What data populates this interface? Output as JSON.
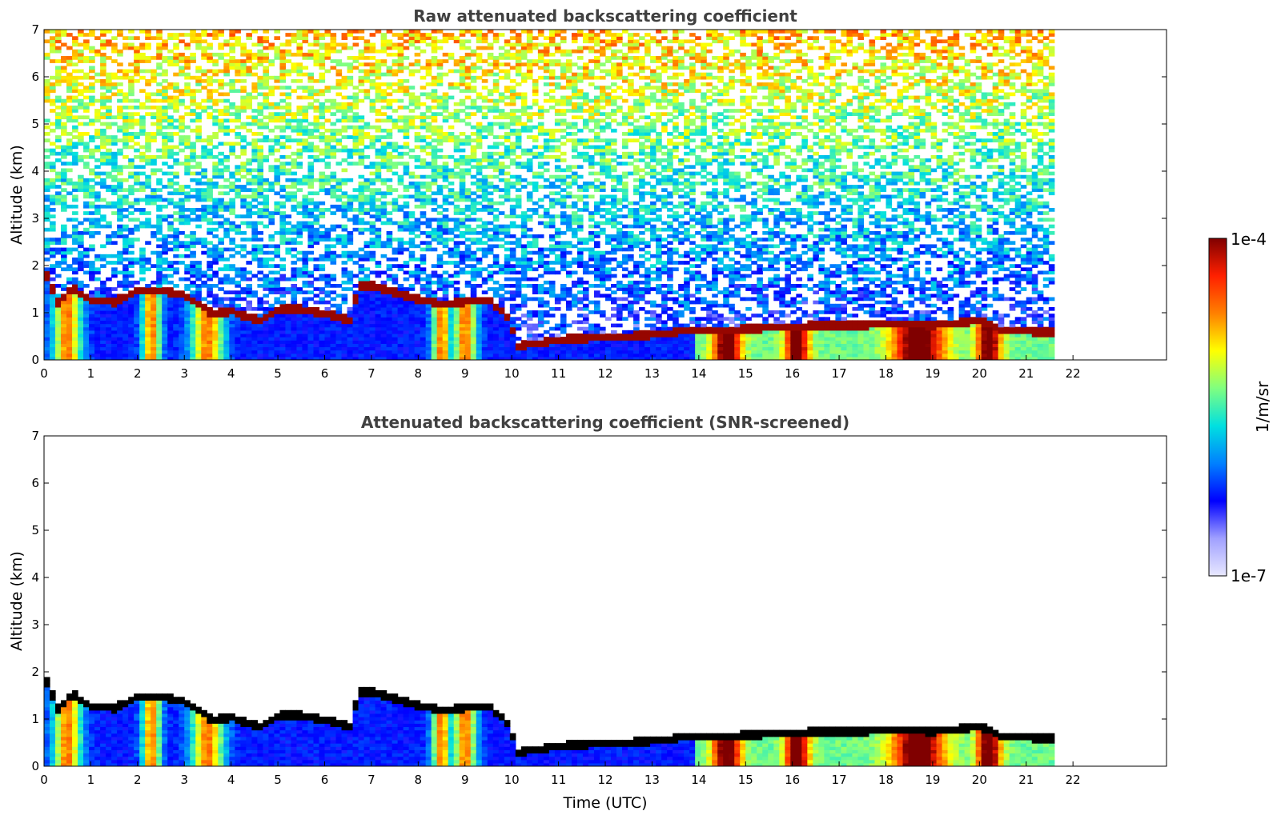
{
  "chart_data": [
    {
      "type": "heatmap",
      "title": "Raw attenuated backscattering coefficient",
      "xlabel": "",
      "ylabel": "Altitude (km)",
      "xlim": [
        0,
        24
      ],
      "ylim": [
        0,
        7
      ],
      "xticks": [
        "0",
        "1",
        "2",
        "3",
        "4",
        "5",
        "6",
        "7",
        "8",
        "9",
        "10",
        "11",
        "12",
        "13",
        "14",
        "15",
        "16",
        "17",
        "18",
        "19",
        "20",
        "21",
        "22"
      ],
      "yticks": [
        "0",
        "1",
        "2",
        "3",
        "4",
        "5",
        "6",
        "7"
      ],
      "data_end_time": 21.6,
      "screened": false
    },
    {
      "type": "heatmap",
      "title": "Attenuated backscattering coefficient (SNR-screened)",
      "xlabel": "Time (UTC)",
      "ylabel": "Altitude (km)",
      "xlim": [
        0,
        24
      ],
      "ylim": [
        0,
        7
      ],
      "xticks": [
        "0",
        "1",
        "2",
        "3",
        "4",
        "5",
        "6",
        "7",
        "8",
        "9",
        "10",
        "11",
        "12",
        "13",
        "14",
        "15",
        "16",
        "17",
        "18",
        "19",
        "20",
        "21",
        "22"
      ],
      "yticks": [
        "0",
        "1",
        "2",
        "3",
        "4",
        "5",
        "6",
        "7"
      ],
      "data_end_time": 21.6,
      "screened": true
    }
  ],
  "layer_height_km": [
    [
      0.0,
      1.9
    ],
    [
      0.3,
      1.2
    ],
    [
      0.6,
      1.5
    ],
    [
      1.0,
      1.25
    ],
    [
      1.5,
      1.2
    ],
    [
      2.0,
      1.45
    ],
    [
      2.5,
      1.45
    ],
    [
      3.0,
      1.35
    ],
    [
      3.3,
      1.15
    ],
    [
      3.6,
      0.95
    ],
    [
      4.0,
      1.0
    ],
    [
      4.6,
      0.8
    ],
    [
      5.0,
      1.05
    ],
    [
      5.5,
      1.05
    ],
    [
      6.0,
      0.95
    ],
    [
      6.6,
      0.8
    ],
    [
      6.7,
      1.55
    ],
    [
      7.0,
      1.55
    ],
    [
      7.5,
      1.4
    ],
    [
      8.0,
      1.25
    ],
    [
      8.5,
      1.15
    ],
    [
      9.0,
      1.2
    ],
    [
      9.5,
      1.25
    ],
    [
      10.0,
      0.8
    ],
    [
      10.05,
      0.25
    ],
    [
      11.0,
      0.4
    ],
    [
      12.0,
      0.45
    ],
    [
      13.0,
      0.5
    ],
    [
      13.8,
      0.6
    ],
    [
      14.5,
      0.6
    ],
    [
      15.5,
      0.65
    ],
    [
      16.5,
      0.7
    ],
    [
      17.5,
      0.7
    ],
    [
      18.0,
      0.75
    ],
    [
      19.0,
      0.7
    ],
    [
      20.0,
      0.8
    ],
    [
      20.5,
      0.6
    ],
    [
      21.6,
      0.55
    ]
  ],
  "colorbar": {
    "max_label": "1e-4",
    "min_label": "1e-7",
    "unit_label": "1/m/sr",
    "scale": "log",
    "colors": [
      "#e8e8ff",
      "#a0a0ff",
      "#0000ff",
      "#0080ff",
      "#00e0e0",
      "#80ff80",
      "#ffff00",
      "#ff8000",
      "#ff2000",
      "#800000"
    ]
  }
}
